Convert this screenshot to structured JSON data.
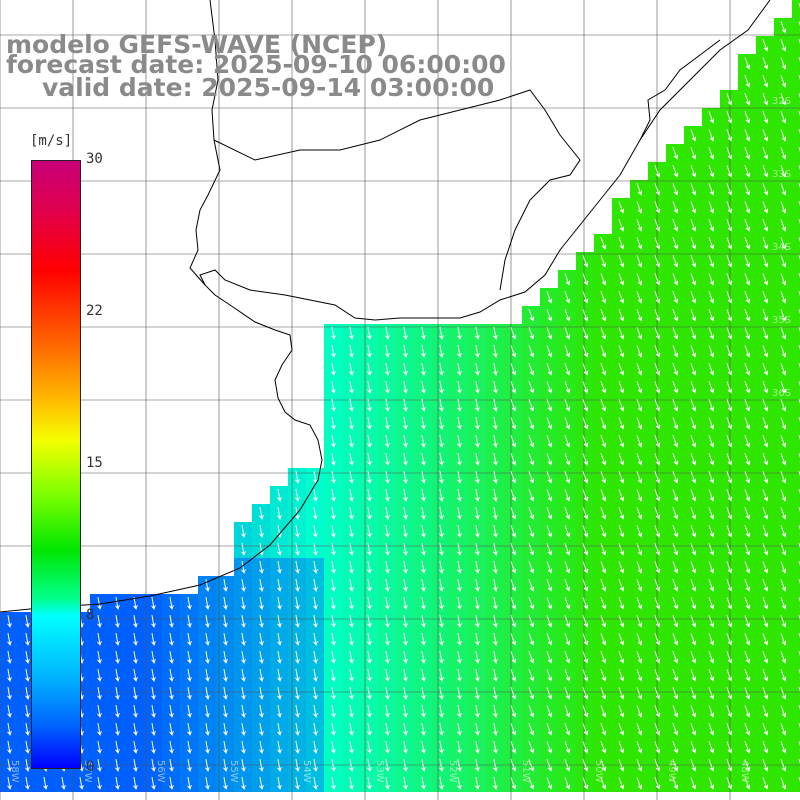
{
  "title": {
    "line1": "modelo GEFS-WAVE (NCEP)",
    "line2": "forecast date: 2025-09-10 06:00:00",
    "line3": "valid date: 2025-09-14 03:00:00"
  },
  "colorbar": {
    "unit": "[m/s]",
    "ticks": [
      "30",
      "22",
      "15",
      "8",
      "0"
    ],
    "min": 0,
    "max": 30
  },
  "map": {
    "lat_labels": [
      "32S",
      "33S",
      "34S",
      "35S",
      "36S"
    ],
    "lon_labels": [
      "58W",
      "57W",
      "56W",
      "55W",
      "54W",
      "53W",
      "52W",
      "51W",
      "50W",
      "49W",
      "48W"
    ],
    "colors": {
      "land": "#ffffff",
      "coast": "#000000",
      "grid": "#555555",
      "wind_low": "#0060ff",
      "wind_mid": "#00ffcc",
      "wind_high": "#2ee600",
      "arrow": "#ffffff"
    }
  }
}
